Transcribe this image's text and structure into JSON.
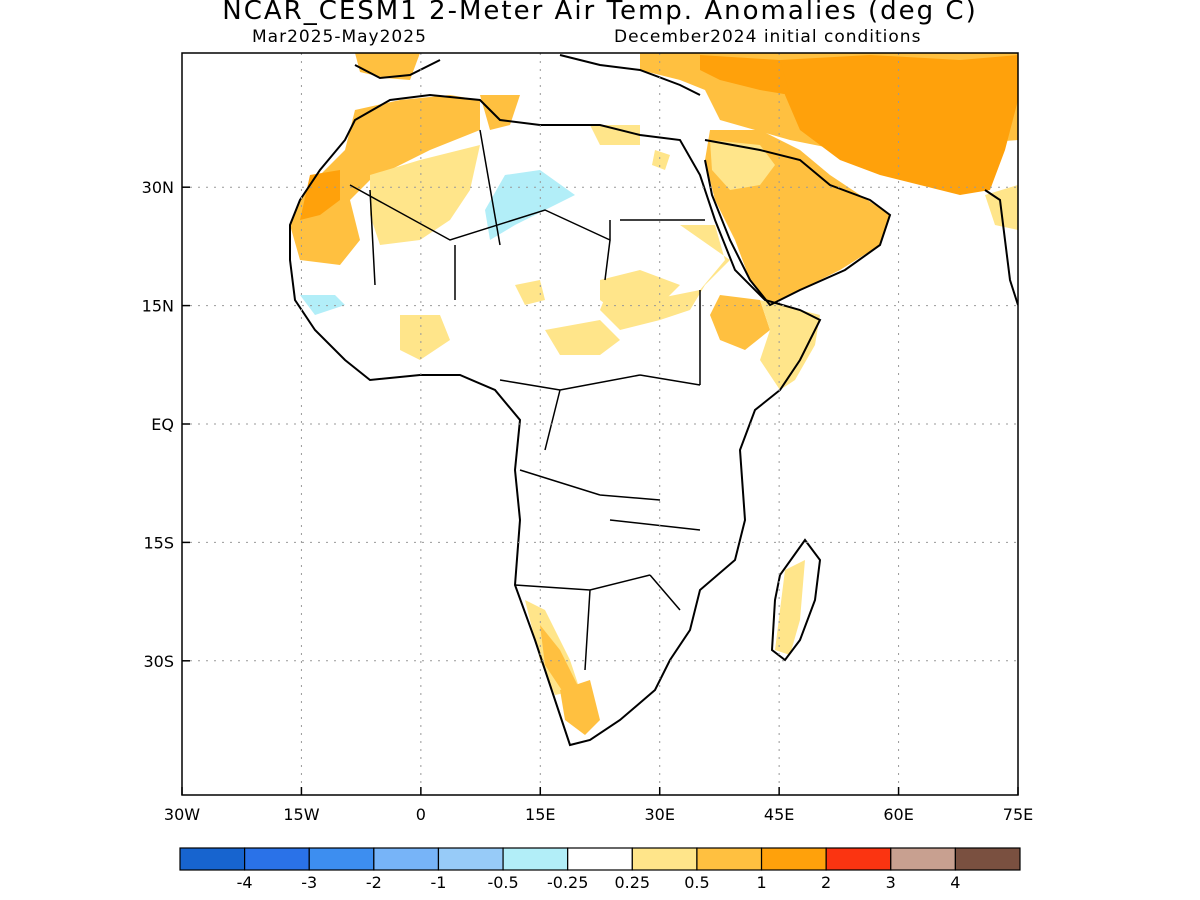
{
  "title": "NCAR_CESM1 2-Meter Air Temp. Anomalies (deg C)",
  "subtitle_left": "Mar2025-May2025",
  "subtitle_right": "December2024 initial conditions",
  "map": {
    "lon_range": [
      -30,
      75
    ],
    "lat_range": [
      -47,
      47
    ],
    "lon_ticks": [
      {
        "value": -30,
        "label": "30W"
      },
      {
        "value": -15,
        "label": "15W"
      },
      {
        "value": 0,
        "label": "0"
      },
      {
        "value": 15,
        "label": "15E"
      },
      {
        "value": 30,
        "label": "30E"
      },
      {
        "value": 45,
        "label": "45E"
      },
      {
        "value": 60,
        "label": "60E"
      },
      {
        "value": 75,
        "label": "75E"
      }
    ],
    "lat_ticks": [
      {
        "value": 30,
        "label": "30N"
      },
      {
        "value": 15,
        "label": "15N"
      },
      {
        "value": 0,
        "label": "EQ"
      },
      {
        "value": -15,
        "label": "15S"
      },
      {
        "value": -30,
        "label": "30S"
      }
    ],
    "grid": true
  },
  "colorbar": {
    "colors": [
      "#1764cf",
      "#2a72e8",
      "#3d8ef0",
      "#77b4f8",
      "#97cbf8",
      "#b2eef8",
      "#ffffff",
      "#ffe58a",
      "#ffc040",
      "#ffa10b",
      "#fb3411",
      "#c8a090",
      "#7a5040"
    ],
    "labels": [
      "-4",
      "-3",
      "-2",
      "-1",
      "-0.5",
      "-0.25",
      "0.25",
      "0.5",
      "1",
      "2",
      "3",
      "4"
    ]
  }
}
